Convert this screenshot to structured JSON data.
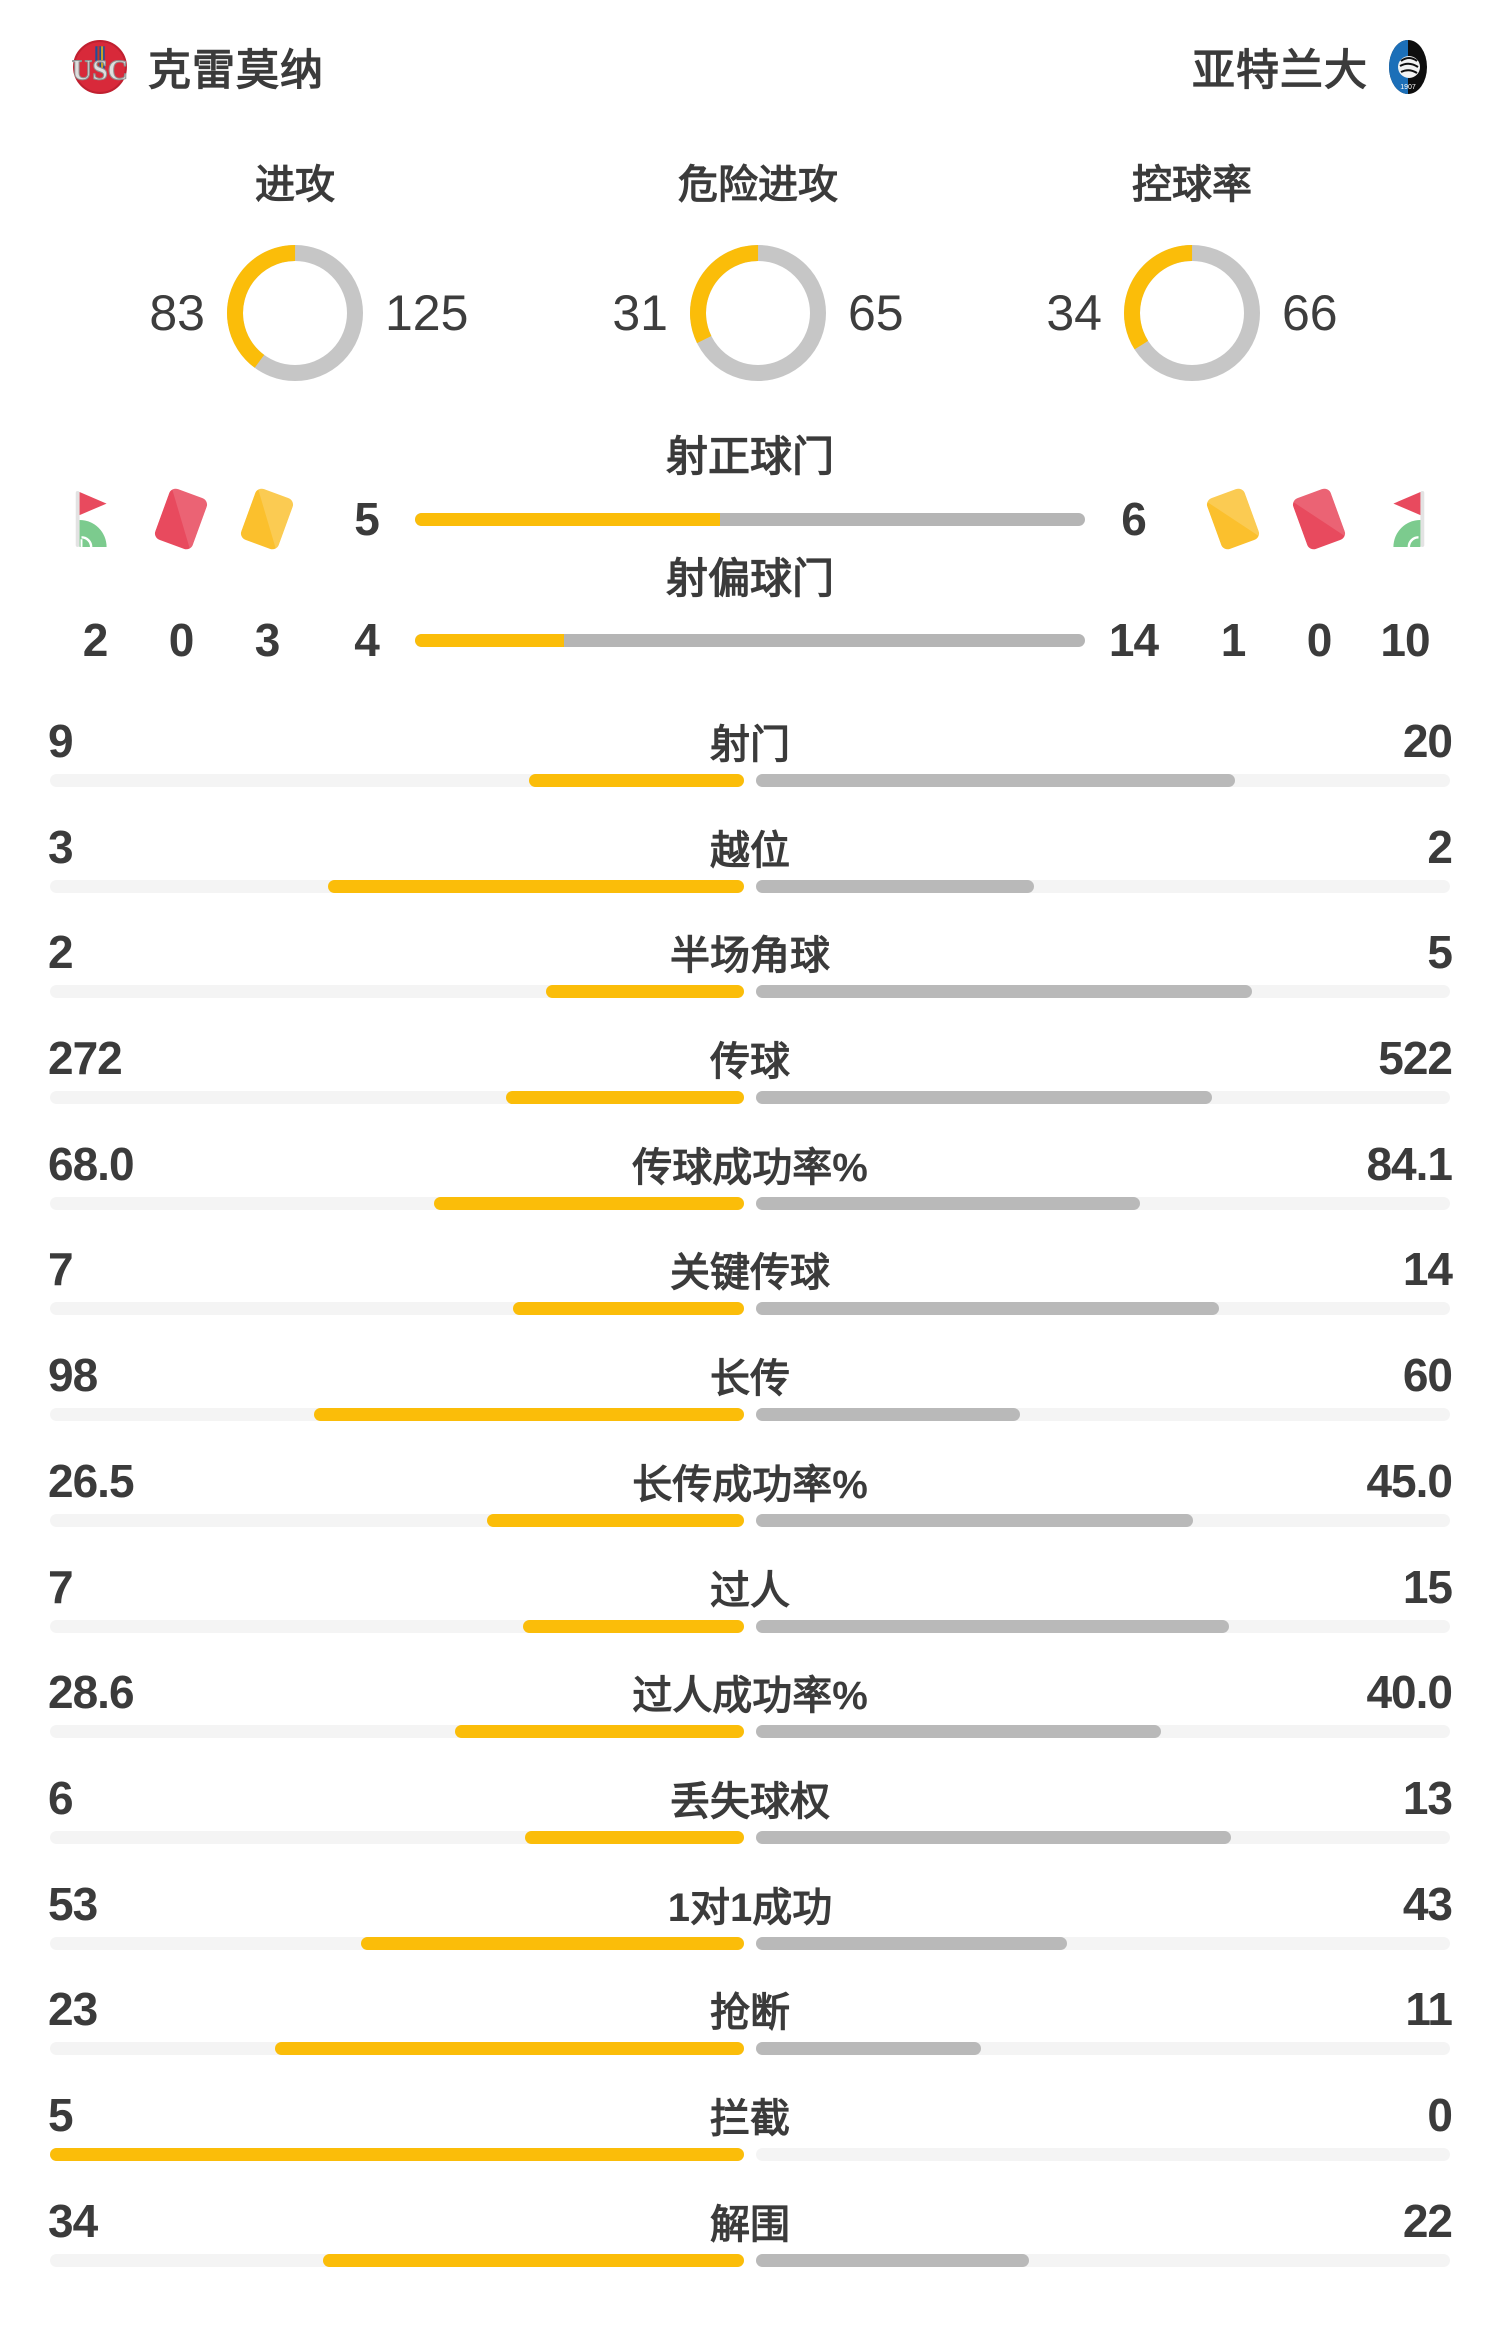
{
  "teams": {
    "home": {
      "name": "克雷莫纳",
      "crest_letters": "USC"
    },
    "away": {
      "name": "亚特兰大",
      "crest_year": "1907"
    }
  },
  "donut_charts": [
    {
      "title": "进攻",
      "home": 83,
      "away": 125
    },
    {
      "title": "危险进攻",
      "home": 31,
      "away": 65
    },
    {
      "title": "控球率",
      "home": 34,
      "away": 66
    }
  ],
  "discipline": {
    "home": {
      "corner_kicks": "2",
      "red_cards": "0",
      "yellow_cards": "3"
    },
    "away": {
      "yellow_cards": "1",
      "red_cards": "0",
      "corner_kicks": "10"
    }
  },
  "shot_bars": [
    {
      "label": "射正球门",
      "home": 5,
      "away": 6
    },
    {
      "label": "射偏球门",
      "home": 4,
      "away": 14
    }
  ],
  "stat_rows": [
    {
      "label": "射门",
      "home": "9",
      "away": "20"
    },
    {
      "label": "越位",
      "home": "3",
      "away": "2"
    },
    {
      "label": "半场角球",
      "home": "2",
      "away": "5"
    },
    {
      "label": "传球",
      "home": "272",
      "away": "522"
    },
    {
      "label": "传球成功率%",
      "home": "68.0",
      "away": "84.1"
    },
    {
      "label": "关键传球",
      "home": "7",
      "away": "14"
    },
    {
      "label": "长传",
      "home": "98",
      "away": "60"
    },
    {
      "label": "长传成功率%",
      "home": "26.5",
      "away": "45.0"
    },
    {
      "label": "过人",
      "home": "7",
      "away": "15"
    },
    {
      "label": "过人成功率%",
      "home": "28.6",
      "away": "40.0"
    },
    {
      "label": "丢失球权",
      "home": "6",
      "away": "13"
    },
    {
      "label": "1对1成功",
      "home": "53",
      "away": "43"
    },
    {
      "label": "抢断",
      "home": "23",
      "away": "11"
    },
    {
      "label": "拦截",
      "home": "5",
      "away": "0"
    },
    {
      "label": "解围",
      "home": "34",
      "away": "22"
    }
  ],
  "colors": {
    "home": "#fbbd09",
    "away_bar": "#b9b9b9",
    "shot_away": "#b5b5b5",
    "donut_away": "#c6c6c6",
    "track": "#f4f4f4",
    "ink": "#3b3b3b",
    "red_card": "#e84a5e",
    "yellow_card": "#fbc02d",
    "flag_green": "#7ccb8e"
  },
  "chart_data": [
    {
      "type": "pie",
      "title": "进攻",
      "series": [
        {
          "name": "克雷莫纳",
          "value": 83
        },
        {
          "name": "亚特兰大",
          "value": 125
        }
      ]
    },
    {
      "type": "pie",
      "title": "危险进攻",
      "series": [
        {
          "name": "克雷莫纳",
          "value": 31
        },
        {
          "name": "亚特兰大",
          "value": 65
        }
      ]
    },
    {
      "type": "pie",
      "title": "控球率",
      "series": [
        {
          "name": "克雷莫纳",
          "value": 34
        },
        {
          "name": "亚特兰大",
          "value": 66
        }
      ]
    },
    {
      "type": "bar",
      "title": "射正球门",
      "categories": [
        "克雷莫纳",
        "亚特兰大"
      ],
      "values": [
        5,
        6
      ]
    },
    {
      "type": "bar",
      "title": "射偏球门",
      "categories": [
        "克雷莫纳",
        "亚特兰大"
      ],
      "values": [
        4,
        14
      ]
    },
    {
      "type": "bar",
      "title": "红黄牌与角球",
      "categories": [
        "角球",
        "红牌",
        "黄牌"
      ],
      "series": [
        {
          "name": "克雷莫纳",
          "values": [
            2,
            0,
            3
          ]
        },
        {
          "name": "亚特兰大",
          "values": [
            10,
            0,
            1
          ]
        }
      ]
    },
    {
      "type": "bar",
      "title": "比赛统计对比",
      "categories": [
        "射门",
        "越位",
        "半场角球",
        "传球",
        "传球成功率%",
        "关键传球",
        "长传",
        "长传成功率%",
        "过人",
        "过人成功率%",
        "丢失球权",
        "1对1成功",
        "抢断",
        "拦截",
        "解围"
      ],
      "series": [
        {
          "name": "克雷莫纳",
          "values": [
            9,
            3,
            2,
            272,
            68.0,
            7,
            98,
            26.5,
            7,
            28.6,
            6,
            53,
            23,
            5,
            34
          ]
        },
        {
          "name": "亚特兰大",
          "values": [
            20,
            2,
            5,
            522,
            84.1,
            14,
            60,
            45.0,
            15,
            40.0,
            13,
            43,
            11,
            0,
            22
          ]
        }
      ]
    }
  ]
}
